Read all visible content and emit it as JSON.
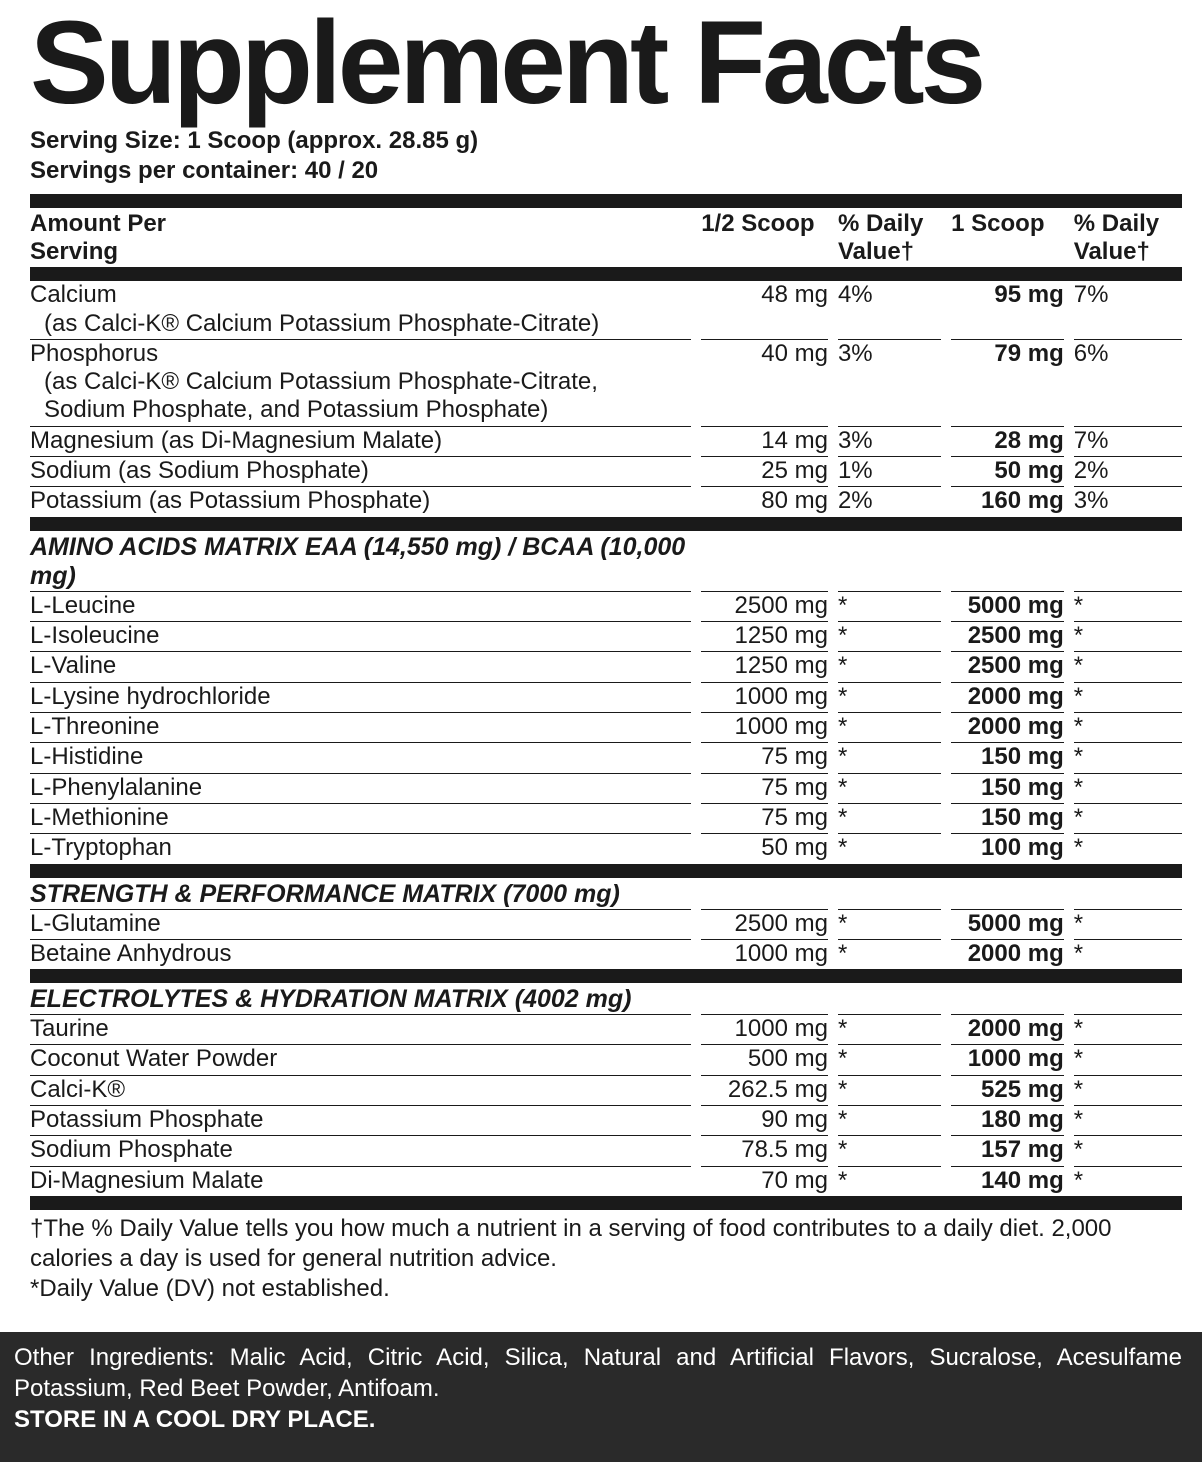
{
  "colors": {
    "ink": "#1a1a1a",
    "panel_bg": "#ffffff",
    "footer_bg": "#2a2a2a",
    "footer_text": "#ffffff"
  },
  "title": "Supplement Facts",
  "serving_size": "Serving Size: 1 Scoop (approx. 28.85 g)",
  "servings_per": "Servings per container: 40 / 20",
  "headers": {
    "amount": "Amount Per\nServing",
    "half": "1/2 Scoop",
    "dv1": "% Daily\nValue†",
    "full": "1 Scoop",
    "dv2": "% Daily\nValue†"
  },
  "minerals": [
    {
      "name": "Calcium",
      "sub": "(as Calci-K® Calcium Potassium Phosphate-Citrate)",
      "half": "48 mg",
      "dv1": "4%",
      "full": "95 mg",
      "dv2": "7%"
    },
    {
      "name": "Phosphorus",
      "sub": "(as Calci-K® Calcium Potassium Phosphate-Citrate,\nSodium Phosphate, and Potassium Phosphate)",
      "half": "40 mg",
      "dv1": "3%",
      "full": "79 mg",
      "dv2": "6%"
    },
    {
      "name": "Magnesium (as Di-Magnesium Malate)",
      "half": "14 mg",
      "dv1": "3%",
      "full": "28 mg",
      "dv2": "7%"
    },
    {
      "name": "Sodium (as Sodium Phosphate)",
      "half": "25 mg",
      "dv1": "1%",
      "full": "50 mg",
      "dv2": "2%"
    },
    {
      "name": "Potassium (as Potassium Phosphate)",
      "half": "80 mg",
      "dv1": "2%",
      "full": "160 mg",
      "dv2": "3%"
    }
  ],
  "sections": [
    {
      "title": "AMINO ACIDS MATRIX EAA (14,550 mg) / BCAA (10,000 mg)",
      "rows": [
        {
          "name": "L-Leucine",
          "half": "2500 mg",
          "dv1": "*",
          "full": "5000 mg",
          "dv2": "*"
        },
        {
          "name": "L-Isoleucine",
          "half": "1250 mg",
          "dv1": "*",
          "full": "2500 mg",
          "dv2": "*"
        },
        {
          "name": "L-Valine",
          "half": "1250 mg",
          "dv1": "*",
          "full": "2500 mg",
          "dv2": "*"
        },
        {
          "name": "L-Lysine hydrochloride",
          "half": "1000 mg",
          "dv1": "*",
          "full": "2000 mg",
          "dv2": "*"
        },
        {
          "name": "L-Threonine",
          "half": "1000 mg",
          "dv1": "*",
          "full": "2000 mg",
          "dv2": "*"
        },
        {
          "name": "L-Histidine",
          "half": "75 mg",
          "dv1": "*",
          "full": "150 mg",
          "dv2": "*"
        },
        {
          "name": "L-Phenylalanine",
          "half": "75 mg",
          "dv1": "*",
          "full": "150 mg",
          "dv2": "*"
        },
        {
          "name": "L-Methionine",
          "half": "75 mg",
          "dv1": "*",
          "full": "150 mg",
          "dv2": "*"
        },
        {
          "name": "L-Tryptophan",
          "half": "50 mg",
          "dv1": "*",
          "full": "100 mg",
          "dv2": "*"
        }
      ]
    },
    {
      "title": "STRENGTH & PERFORMANCE MATRIX (7000 mg)",
      "rows": [
        {
          "name": "L-Glutamine",
          "half": "2500 mg",
          "dv1": "*",
          "full": "5000 mg",
          "dv2": "*"
        },
        {
          "name": "Betaine Anhydrous",
          "half": "1000 mg",
          "dv1": "*",
          "full": "2000 mg",
          "dv2": "*"
        }
      ]
    },
    {
      "title": "ELECTROLYTES & HYDRATION MATRIX (4002 mg)",
      "rows": [
        {
          "name": "Taurine",
          "half": "1000 mg",
          "dv1": "*",
          "full": "2000 mg",
          "dv2": "*"
        },
        {
          "name": "Coconut Water Powder",
          "half": "500 mg",
          "dv1": "*",
          "full": "1000 mg",
          "dv2": "*"
        },
        {
          "name": "Calci-K®",
          "half": "262.5 mg",
          "dv1": "*",
          "full": "525 mg",
          "dv2": "*"
        },
        {
          "name": "Potassium Phosphate",
          "half": "90 mg",
          "dv1": "*",
          "full": "180 mg",
          "dv2": "*"
        },
        {
          "name": "Sodium Phosphate",
          "half": "78.5 mg",
          "dv1": "*",
          "full": "157 mg",
          "dv2": "*"
        },
        {
          "name": "Di-Magnesium Malate",
          "half": "70 mg",
          "dv1": "*",
          "full": "140 mg",
          "dv2": "*"
        }
      ]
    }
  ],
  "footnotes": {
    "dagger": "†The % Daily Value tells you how much a nutrient in a serving of food contributes to a daily diet. 2,000 calories a day is used for general nutrition advice.",
    "asterisk": "*Daily Value (DV) not established."
  },
  "footer": {
    "other": "Other Ingredients: Malic Acid, Citric Acid, Silica, Natural and Artificial Flavors, Sucralose, Acesulfame Potassium, Red Beet Powder, Antifoam.",
    "store": "STORE IN A COOL DRY PLACE."
  }
}
